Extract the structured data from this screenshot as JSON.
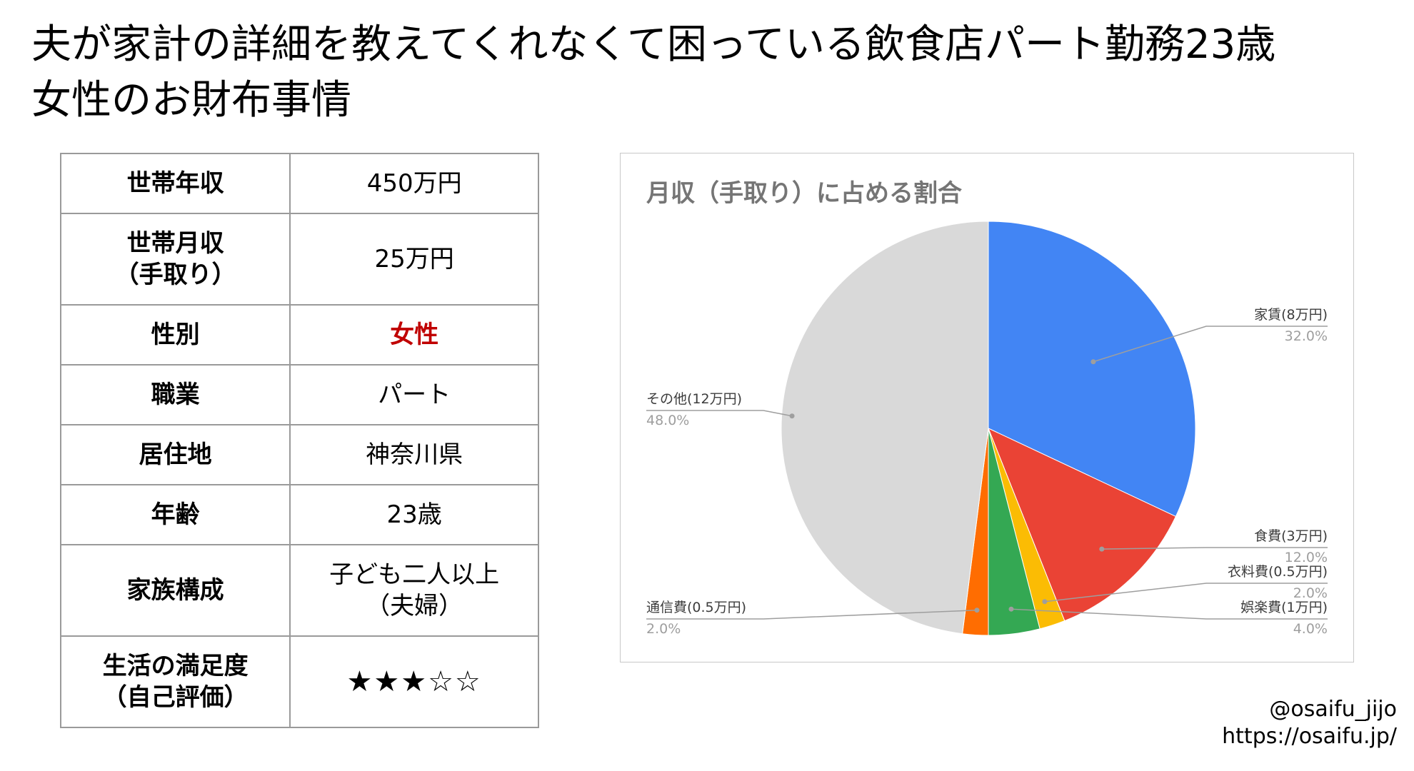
{
  "title": {
    "line1": "夫が家計の詳細を教えてくれなくて困っている飲食店パート勤務23歳",
    "line2": "女性のお財布事情"
  },
  "profile": [
    {
      "label_lines": [
        "世帯年収"
      ],
      "value_lines": [
        "450万円"
      ]
    },
    {
      "label_lines": [
        "世帯月収",
        "（手取り）"
      ],
      "value_lines": [
        "25万円"
      ]
    },
    {
      "label_lines": [
        "性別"
      ],
      "value_lines": [
        "女性"
      ],
      "highlight_color": "#c00000"
    },
    {
      "label_lines": [
        "職業"
      ],
      "value_lines": [
        "パート"
      ]
    },
    {
      "label_lines": [
        "居住地"
      ],
      "value_lines": [
        "神奈川県"
      ]
    },
    {
      "label_lines": [
        "年齢"
      ],
      "value_lines": [
        "23歳"
      ]
    },
    {
      "label_lines": [
        "家族構成"
      ],
      "value_lines": [
        "子ども二人以上",
        "（夫婦）"
      ]
    },
    {
      "label_lines": [
        "生活の満足度",
        "（自己評価）"
      ],
      "value_lines": [
        "★★★☆☆"
      ],
      "rating": 3,
      "rating_max": 5
    }
  ],
  "chart_data": {
    "type": "pie",
    "title": "月収（手取り）に占める割合",
    "slices": [
      {
        "label": "家賃(8万円)",
        "percent_label": "32.0%",
        "value": 32.0,
        "color": "#4285f4"
      },
      {
        "label": "食費(3万円)",
        "percent_label": "12.0%",
        "value": 12.0,
        "color": "#ea4335"
      },
      {
        "label": "衣料費(0.5万円)",
        "percent_label": "2.0%",
        "value": 2.0,
        "color": "#fbbc04"
      },
      {
        "label": "娯楽費(1万円)",
        "percent_label": "4.0%",
        "value": 4.0,
        "color": "#34a853"
      },
      {
        "label": "通信費(0.5万円)",
        "percent_label": "2.0%",
        "value": 2.0,
        "color": "#ff6d01"
      },
      {
        "label": "その他(12万円)",
        "percent_label": "48.0%",
        "value": 48.0,
        "color": "#d9d9d9"
      }
    ]
  },
  "credits": {
    "handle": "@osaifu_jijo",
    "url": "https://osaifu.jp/"
  }
}
